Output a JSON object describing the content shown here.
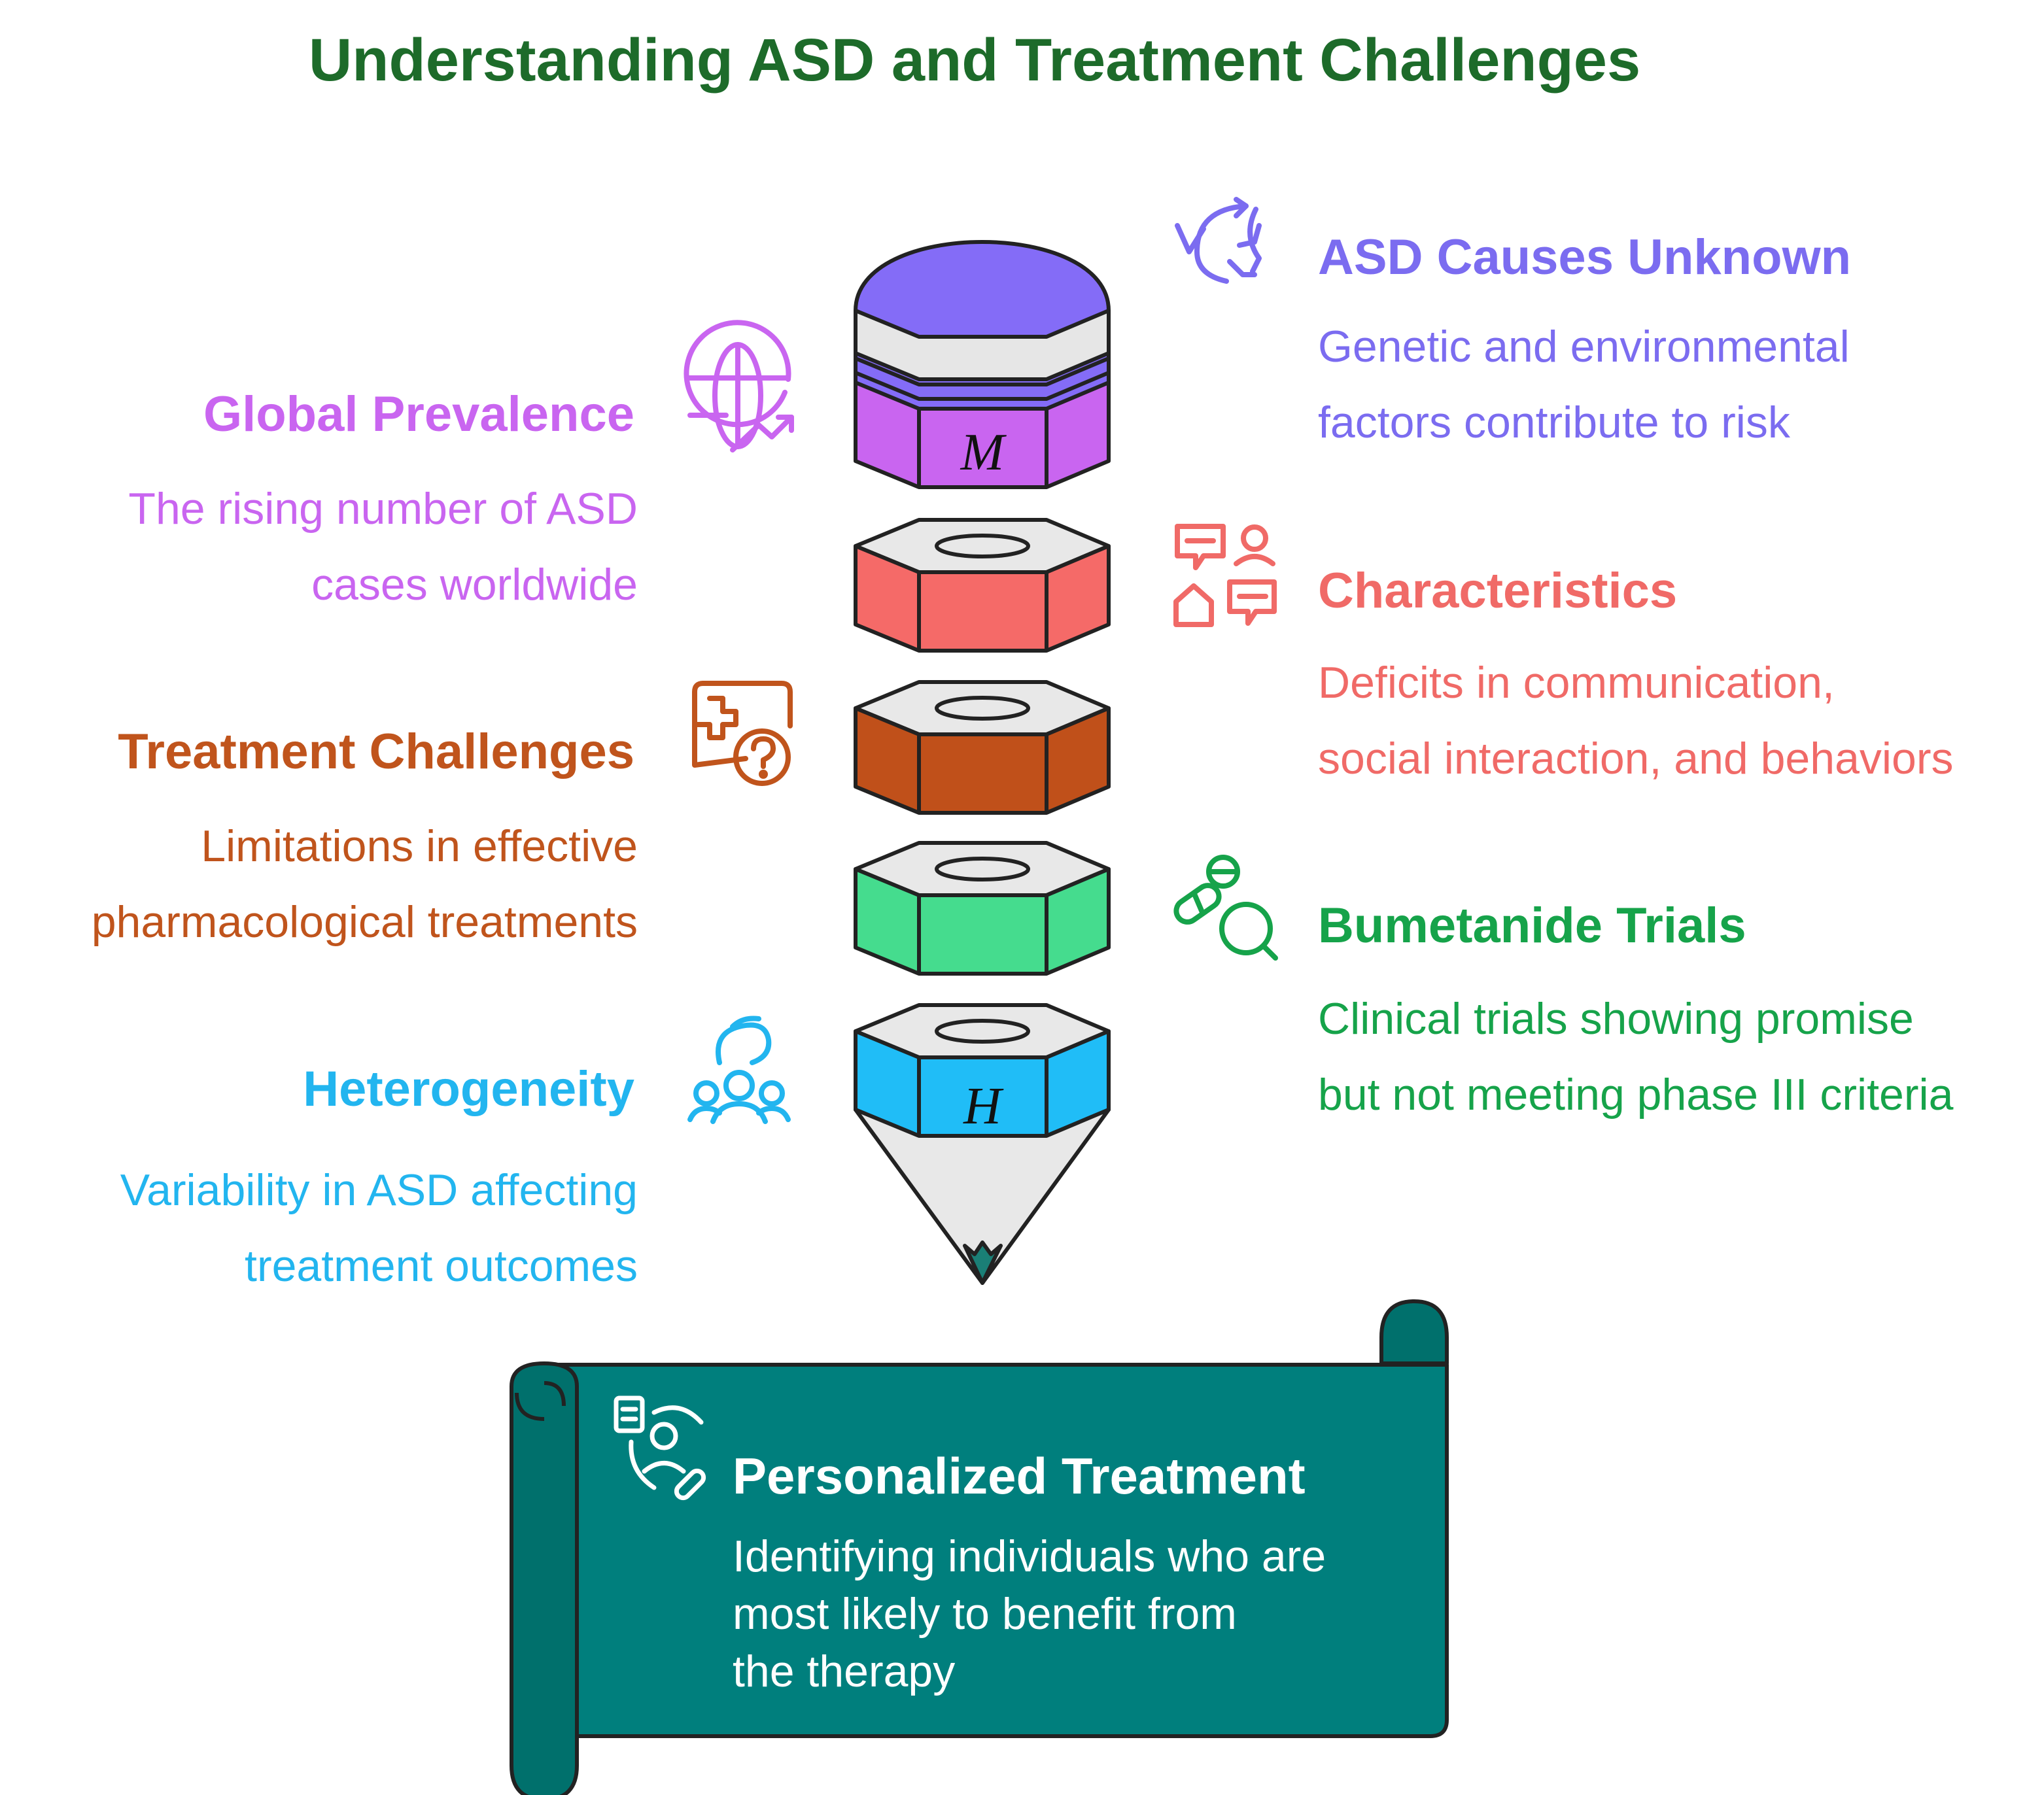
{
  "title": "Understanding ASD and Treatment Challenges",
  "colors": {
    "title": "#1d6b2a",
    "purple_blue": "#7b6cf0",
    "magenta": "#c965f0",
    "coral": "#f06a67",
    "brown": "#c0541c",
    "green": "#16a34a",
    "cyan": "#22b5ef",
    "teal": "#007f7d"
  },
  "left": [
    {
      "heading": "Global Prevalence",
      "line1": "The rising number of ASD",
      "line2": "cases worldwide",
      "icon": "globe-trend-icon"
    },
    {
      "heading": "Treatment Challenges",
      "line1": "Limitations in effective",
      "line2": "pharmacological treatments",
      "icon": "medical-question-icon"
    },
    {
      "heading": "Heterogeneity",
      "line1": "Variability in ASD affecting",
      "line2": "treatment outcomes",
      "icon": "group-hand-icon"
    }
  ],
  "right": [
    {
      "heading": "ASD Causes Unknown",
      "line1": "Genetic and environmental",
      "line2": "factors contribute to risk",
      "icon": "shuffle-arrows-icon"
    },
    {
      "heading": "Characteristics",
      "line1": "Deficits in communication,",
      "line2": "social interaction, and behaviors",
      "icon": "social-chat-icon"
    },
    {
      "heading": "Bumetanide Trials",
      "line1": "Clinical trials showing promise",
      "line2": "but not meeting phase III criteria",
      "icon": "pill-search-icon"
    }
  ],
  "pencil": {
    "top_letter": "M",
    "bottom_letter": "H"
  },
  "scroll": {
    "heading": "Personalized Treatment",
    "line1": "Identifying individuals who are",
    "line2": "most likely to benefit from",
    "line3": "the therapy",
    "icon": "patient-record-icon"
  }
}
